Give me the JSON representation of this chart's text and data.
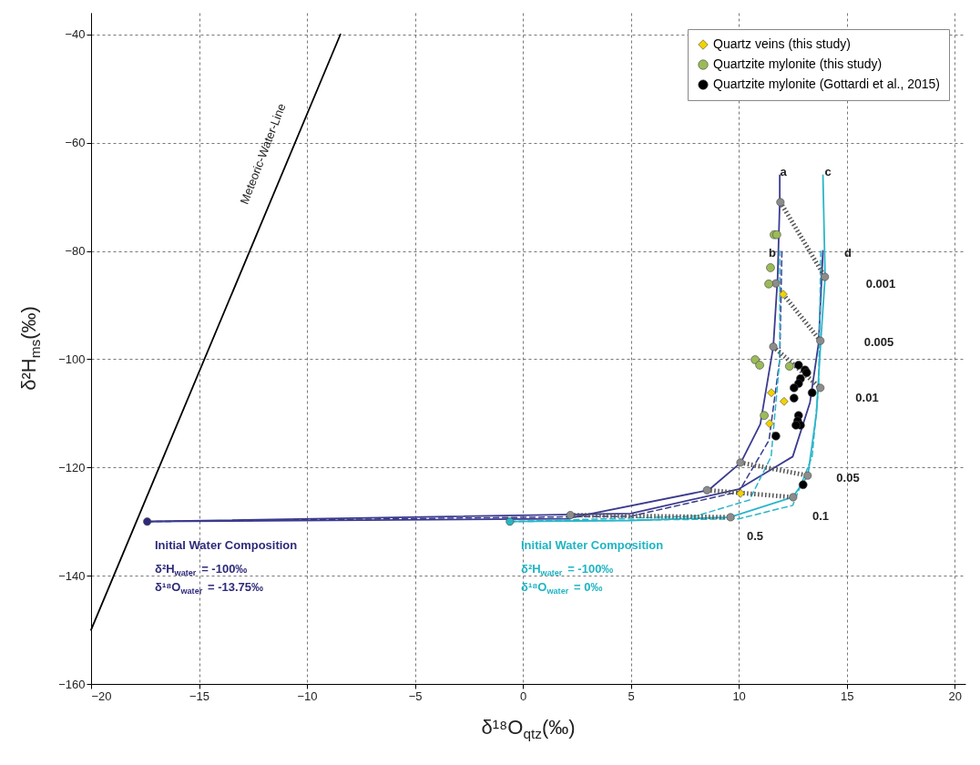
{
  "chart_data": {
    "type": "scatter",
    "xlabel": "δ¹⁸O$_{qtz}$(‰)",
    "ylabel": "δ²H$_{ms}$(‰)",
    "xlim": [
      -20,
      20.5
    ],
    "ylim": [
      -160,
      -36
    ],
    "xticks": [
      -20,
      -15,
      -10,
      -5,
      0,
      5,
      10,
      15,
      20
    ],
    "yticks": [
      -160,
      -140,
      -120,
      -100,
      -80,
      -60,
      -40
    ],
    "grid": true,
    "legend": "top right",
    "series": [
      {
        "type": "line",
        "color": "#000000",
        "line_style": "solid",
        "x": [
          -20,
          -8.45
        ],
        "values": [
          -150,
          -40
        ]
      },
      {
        "type": "line",
        "color": "#3b3b8f",
        "line_style": "solid",
        "x": [
          -17.4,
          2,
          8.6,
          10.1,
          11.0,
          11.6,
          11.8,
          11.9,
          11.9
        ],
        "values": [
          -130,
          -129.5,
          -124.2,
          -119.1,
          -112,
          -97.7,
          -85,
          -71,
          -66
        ]
      },
      {
        "type": "line",
        "color": "#3b3b8f",
        "line_style": "solid",
        "x": [
          -17.4,
          5,
          10,
          12.5,
          13.3,
          13.7,
          13.9
        ],
        "values": [
          -130,
          -128.5,
          -124,
          -118,
          -108,
          -97,
          -80
        ]
      },
      {
        "type": "line",
        "color": "#3b3b8f",
        "line_style": "dashed",
        "x": [
          -17.4,
          5,
          10,
          11.4,
          11.9,
          12
        ],
        "values": [
          -130,
          -129,
          -124.5,
          -115,
          -100,
          -80
        ]
      },
      {
        "type": "line",
        "color": "#2bb5c9",
        "line_style": "solid",
        "x": [
          -0.6,
          5,
          9.6,
          12.5,
          13.2,
          13.6,
          13.8,
          14.0,
          13.9
        ],
        "values": [
          -130,
          -129.8,
          -129.2,
          -125.5,
          -121.5,
          -110,
          -96.6,
          -84.8,
          -66
        ]
      },
      {
        "type": "line",
        "color": "#2bb5c9",
        "line_style": "dashed",
        "x": [
          -0.6,
          10,
          12.5,
          13.4,
          13.7,
          13.8
        ],
        "values": [
          -130,
          -129.5,
          -127,
          -118,
          -105,
          -80
        ]
      },
      {
        "type": "line",
        "color": "#2bb5c9",
        "line_style": "dashed",
        "x": [
          -0.6,
          8,
          10.5,
          11.5,
          11.9,
          11.9
        ],
        "values": [
          -130,
          -129,
          -126,
          -118,
          -100,
          -80
        ]
      },
      {
        "type": "line",
        "color": "#555555",
        "line_style": "dotted",
        "x": [
          11.93,
          13.99
        ],
        "values": [
          -71,
          -84.8
        ]
      },
      {
        "type": "line",
        "color": "#555555",
        "line_style": "dotted",
        "x": [
          12.06,
          13.78
        ],
        "values": [
          -88,
          -96.6
        ]
      },
      {
        "type": "line",
        "color": "#555555",
        "line_style": "dotted",
        "x": [
          11.6,
          13.78
        ],
        "values": [
          -97.7,
          -105.3
        ]
      },
      {
        "type": "line",
        "color": "#555555",
        "line_style": "dotted",
        "x": [
          10.08,
          13.19
        ],
        "values": [
          -119.1,
          -121.5
        ]
      },
      {
        "type": "line",
        "color": "#555555",
        "line_style": "dotted",
        "x": [
          8.53,
          12.52
        ],
        "values": [
          -124.2,
          -125.5
        ]
      },
      {
        "type": "line",
        "color": "#555555",
        "line_style": "dotted",
        "x": [
          2.2,
          9.62
        ],
        "values": [
          -128.8,
          -129.2
        ]
      },
      {
        "color": "#8c8c8c",
        "marker": "circle",
        "x": [
          2.2,
          8.53,
          9.62,
          10.08,
          11.6,
          11.72,
          11.93,
          12.52,
          13.19,
          13.78,
          13.78,
          13.99
        ],
        "values": [
          -128.8,
          -124.2,
          -129.2,
          -119.1,
          -97.7,
          -86.0,
          -71.0,
          -125.5,
          -121.5,
          -96.6,
          -105.3,
          -84.8
        ]
      },
      {
        "color": "#2e2a7a",
        "marker": "circle",
        "x": [
          -17.4
        ],
        "values": [
          -130
        ]
      },
      {
        "color": "#2ab5c0",
        "marker": "circle",
        "x": [
          -0.6
        ],
        "values": [
          -130
        ]
      },
      {
        "name": "Quartz veins (this study)",
        "color": "#f2d200",
        "marker": "diamond",
        "x": [
          12.06,
          11.51,
          12.1,
          11.43,
          10.08
        ],
        "values": [
          -88.0,
          -106.2,
          -107.8,
          -111.9,
          -124.8
        ]
      },
      {
        "name": "Quartzite mylonite (this study)",
        "color": "#9bbb59",
        "marker": "circle",
        "x": [
          11.64,
          11.76,
          11.47,
          11.39,
          10.76,
          10.97,
          12.35,
          11.18
        ],
        "values": [
          -77.0,
          -77.0,
          -83.1,
          -86.1,
          -100.1,
          -101.1,
          -101.3,
          -110.4
        ]
      },
      {
        "name": "Quartzite mylonite (Gottardi et al., 2015)",
        "color": "#000000",
        "marker": "circle",
        "x": [
          12.77,
          13.07,
          13.15,
          12.86,
          12.77,
          12.56,
          13.4,
          12.56,
          12.77,
          12.73,
          12.86,
          12.65,
          11.72,
          12.98
        ],
        "values": [
          -101.1,
          -102.0,
          -102.5,
          -103.6,
          -104.5,
          -105.3,
          -106.2,
          -107.2,
          -110.4,
          -111.4,
          -112.2,
          -112.2,
          -114.2,
          -123.2
        ]
      }
    ],
    "annotations": [
      "Meteoric-Water-Line",
      "a",
      "b",
      "c",
      "d",
      "0.001",
      "0.005",
      "0.01",
      "0.05",
      "0.1",
      "0.5",
      "Initial Water Composition",
      "δ²H$_{water}$ = -100‰",
      "δ¹⁸O$_{water}$ = -13.75‰",
      "Initial Water Composition",
      "δ²H$_{water}$ = -100‰",
      "δ¹⁸O$_{water}$ = 0‰"
    ]
  }
}
